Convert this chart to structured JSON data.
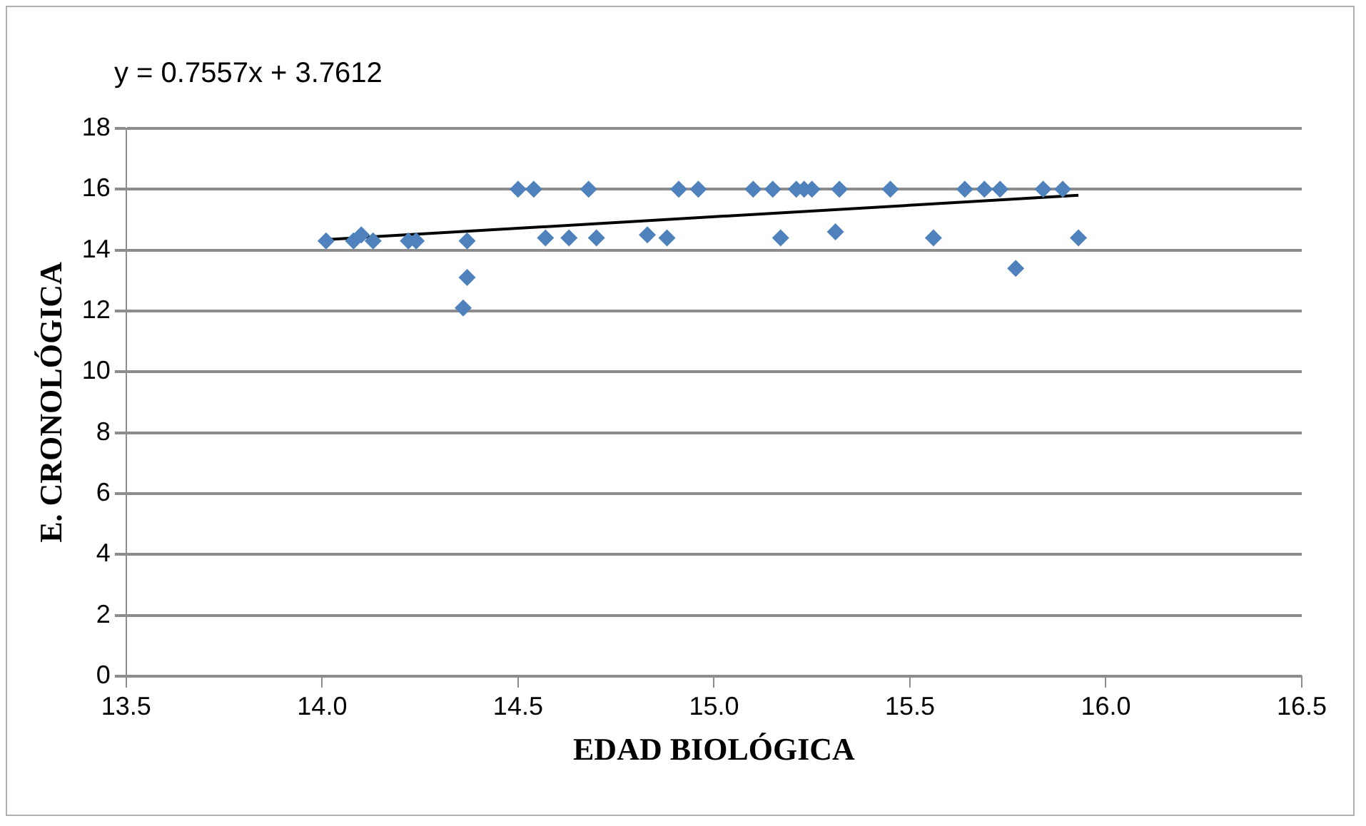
{
  "chart_data": {
    "type": "scatter",
    "xlabel": "EDAD BIOLÓGICA",
    "ylabel": "E. CRONOLÓGICA",
    "annotations": [
      "y = 0.7557x + 3.7612"
    ],
    "xlim": [
      13.5,
      16.5
    ],
    "xticks": [
      {
        "value": 13.5,
        "label": "13.5"
      },
      {
        "value": 14,
        "label": "14.0"
      },
      {
        "value": 14.5,
        "label": "14.5"
      },
      {
        "value": 15,
        "label": "15.0"
      },
      {
        "value": 15.5,
        "label": "15.5"
      },
      {
        "value": 16,
        "label": "16.0"
      },
      {
        "value": 16.5,
        "label": "16.5"
      }
    ],
    "ylim": [
      0,
      18
    ],
    "yticks": [
      0,
      2,
      4,
      6,
      8,
      10,
      12,
      14,
      16,
      18
    ],
    "grid": "y",
    "legend": false,
    "marker": "diamond",
    "series": [
      {
        "color": "#4f81bd",
        "x": [
          14.01,
          14.08,
          14.1,
          14.13,
          14.22,
          14.24,
          14.36,
          14.37,
          14.37,
          14.5,
          14.54,
          14.68,
          14.91,
          14.96,
          15.1,
          15.15,
          15.21,
          14.57,
          14.63,
          14.7,
          14.83,
          14.88,
          15.17,
          15.23,
          15.25,
          15.32,
          15.45,
          15.64,
          15.69,
          15.73,
          15.84,
          15.89,
          15.31,
          15.56,
          15.77,
          15.93
        ],
        "values": [
          14.3,
          14.3,
          14.5,
          14.3,
          14.3,
          14.3,
          12.1,
          13.1,
          14.3,
          16,
          16,
          16,
          16,
          16,
          16,
          16,
          16,
          14.4,
          14.4,
          14.4,
          14.5,
          14.4,
          14.4,
          16,
          16,
          16,
          16,
          16,
          16,
          16,
          16,
          16,
          14.6,
          14.4,
          13.4,
          14.4
        ]
      },
      {
        "type": "line",
        "color": "#000000",
        "marker": "none",
        "x": [
          14.0,
          15.93
        ],
        "values": [
          14.34,
          15.8
        ]
      }
    ]
  }
}
